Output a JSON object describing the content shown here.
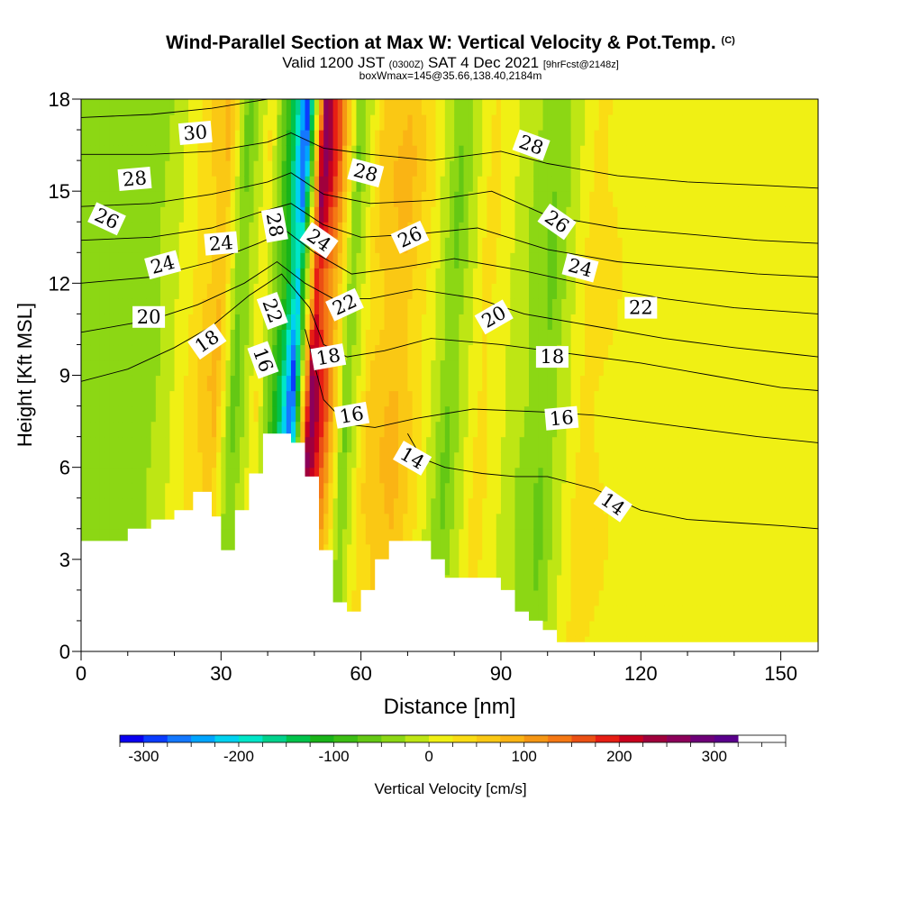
{
  "title": {
    "main": "Wind-Parallel Section at Max W: Vertical Velocity & Pot.Temp.",
    "copyright": "(C)",
    "valid_prefix": "Valid 1200 JST",
    "valid_utc": "(0300Z)",
    "valid_date": "SAT 4 Dec 2021",
    "forecast": "[9hrFcst@2148z]",
    "box": "boxWmax=145@35.66,138.40,2184m"
  },
  "chart_data": {
    "type": "heatmap",
    "xlabel": "Distance [nm]",
    "ylabel": "Height [Kft MSL]",
    "xlim": [
      0,
      158
    ],
    "ylim": [
      0,
      18
    ],
    "x_ticks": [
      0,
      30,
      60,
      90,
      120,
      150
    ],
    "y_ticks": [
      0,
      3,
      6,
      9,
      12,
      15,
      18
    ],
    "colorbar": {
      "label": "Vertical Velocity [cm/s]",
      "min": -325,
      "max": 375,
      "step": 25,
      "tick_values": [
        -300,
        -200,
        -100,
        0,
        100,
        200,
        300
      ],
      "tick_labels": [
        "-300",
        "-200",
        "-100",
        "0",
        "100",
        "200",
        "300"
      ],
      "colors": [
        "#0a00f0",
        "#0a3cff",
        "#1478ff",
        "#00a5ff",
        "#00d2f0",
        "#00e6c8",
        "#00d28c",
        "#00c34b",
        "#19b419",
        "#3cbe14",
        "#64c814",
        "#8cd714",
        "#bee614",
        "#f0f014",
        "#fadc14",
        "#fac814",
        "#fab414",
        "#f59614",
        "#f57814",
        "#eb5014",
        "#e61e14",
        "#c8001e",
        "#a0003c",
        "#8c005a",
        "#6e0078",
        "#5a008c"
      ]
    },
    "terrain_profile": {
      "x": [
        0,
        3,
        10,
        15,
        20,
        24,
        28,
        30,
        33,
        36,
        39,
        45,
        48,
        51,
        54,
        57,
        60,
        63,
        66,
        69,
        75,
        78,
        90,
        93,
        96,
        99,
        102,
        158
      ],
      "height": [
        3.6,
        3.6,
        4.0,
        4.3,
        4.6,
        5.2,
        4.4,
        3.3,
        4.6,
        5.8,
        7.1,
        6.8,
        5.7,
        3.3,
        1.6,
        1.3,
        2.0,
        3.0,
        3.6,
        3.6,
        3.0,
        2.4,
        2.0,
        1.3,
        1.0,
        0.7,
        0.3,
        0.3
      ]
    },
    "velocity_features": [
      {
        "x": 15,
        "value": -40
      },
      {
        "x": 22,
        "value": 20
      },
      {
        "x": 29,
        "value": 90
      },
      {
        "x": 33,
        "value": -70
      },
      {
        "x": 38,
        "value": 30
      },
      {
        "x": 43,
        "value": -150
      },
      {
        "x": 45.5,
        "value": -300
      },
      {
        "x": 49.5,
        "value": 280
      },
      {
        "x": 53,
        "value": 150
      },
      {
        "x": 57,
        "value": -60
      },
      {
        "x": 62,
        "value": 60
      },
      {
        "x": 68,
        "value": 90
      },
      {
        "x": 74,
        "value": 20
      },
      {
        "x": 79,
        "value": -60
      },
      {
        "x": 86,
        "value": 40
      },
      {
        "x": 95,
        "value": -30
      },
      {
        "x": 100,
        "value": -60
      },
      {
        "x": 108,
        "value": 40
      },
      {
        "x": 117,
        "value": 20
      },
      {
        "x": 131,
        "value": 10
      },
      {
        "x": 145,
        "value": 20
      }
    ],
    "potential_temperature_isotherms": [
      {
        "label": "14",
        "points": [
          [
            70,
            7.1
          ],
          [
            73,
            6.3
          ],
          [
            78,
            6.0
          ],
          [
            86,
            5.8
          ],
          [
            93,
            5.7
          ],
          [
            100,
            5.7
          ],
          [
            110,
            5.3
          ],
          [
            120,
            4.6
          ],
          [
            130,
            4.3
          ],
          [
            140,
            4.2
          ],
          [
            150,
            4.1
          ],
          [
            158,
            4.0
          ]
        ],
        "label_at": [
          [
            71,
            6.3,
            30
          ],
          [
            114,
            4.8,
            35
          ]
        ]
      },
      {
        "label": "16",
        "points": [
          [
            48,
            10.5
          ],
          [
            52,
            8.2
          ],
          [
            57,
            7.4
          ],
          [
            63,
            7.3
          ],
          [
            72,
            7.6
          ],
          [
            84,
            7.9
          ],
          [
            100,
            7.8
          ],
          [
            110,
            7.7
          ],
          [
            120,
            7.5
          ],
          [
            135,
            7.2
          ],
          [
            145,
            7.0
          ],
          [
            158,
            6.8
          ]
        ],
        "label_at": [
          [
            39,
            9.5,
            70
          ],
          [
            58,
            7.7,
            -10
          ],
          [
            103,
            7.6,
            -5
          ]
        ]
      },
      {
        "label": "18",
        "points": [
          [
            0,
            8.8
          ],
          [
            10,
            9.2
          ],
          [
            20,
            9.9
          ],
          [
            28,
            10.6
          ],
          [
            36,
            11.6
          ],
          [
            43,
            12.3
          ],
          [
            49,
            11.2
          ],
          [
            52,
            10.0
          ],
          [
            57,
            9.6
          ],
          [
            65,
            9.8
          ],
          [
            75,
            10.2
          ],
          [
            90,
            10.0
          ],
          [
            105,
            9.7
          ],
          [
            120,
            9.4
          ],
          [
            135,
            9.0
          ],
          [
            150,
            8.6
          ],
          [
            158,
            8.5
          ]
        ],
        "label_at": [
          [
            27,
            10.1,
            -35
          ],
          [
            53,
            9.6,
            -10
          ],
          [
            101,
            9.6,
            0
          ]
        ]
      },
      {
        "label": "20",
        "points": [
          [
            0,
            10.4
          ],
          [
            15,
            10.8
          ],
          [
            25,
            11.3
          ],
          [
            35,
            12.0
          ],
          [
            42,
            12.7
          ],
          [
            48,
            12.0
          ],
          [
            54,
            11.5
          ],
          [
            62,
            11.5
          ],
          [
            72,
            11.8
          ],
          [
            85,
            11.5
          ],
          [
            95,
            11.0
          ],
          [
            110,
            10.6
          ],
          [
            125,
            10.2
          ],
          [
            140,
            9.9
          ],
          [
            158,
            9.6
          ]
        ],
        "label_at": [
          [
            14.5,
            10.9,
            0
          ],
          [
            88.5,
            10.9,
            -30
          ]
        ]
      },
      {
        "label": "22",
        "points": [
          [
            0,
            12.0
          ],
          [
            15,
            12.2
          ],
          [
            28,
            12.7
          ],
          [
            38,
            13.3
          ],
          [
            44,
            13.7
          ],
          [
            50,
            13.0
          ],
          [
            58,
            12.3
          ],
          [
            68,
            12.5
          ],
          [
            80,
            12.8
          ],
          [
            95,
            12.4
          ],
          [
            110,
            11.9
          ],
          [
            125,
            11.5
          ],
          [
            140,
            11.2
          ],
          [
            158,
            11.0
          ]
        ],
        "label_at": [
          [
            41,
            11.1,
            70
          ],
          [
            56.5,
            11.3,
            -25
          ],
          [
            120,
            11.2,
            0
          ]
        ]
      },
      {
        "label": "24",
        "points": [
          [
            0,
            13.4
          ],
          [
            15,
            13.5
          ],
          [
            28,
            13.8
          ],
          [
            38,
            14.3
          ],
          [
            45,
            14.6
          ],
          [
            52,
            13.9
          ],
          [
            60,
            13.5
          ],
          [
            72,
            13.6
          ],
          [
            85,
            13.8
          ],
          [
            100,
            13.1
          ],
          [
            115,
            12.7
          ],
          [
            130,
            12.5
          ],
          [
            145,
            12.3
          ],
          [
            158,
            12.2
          ]
        ],
        "label_at": [
          [
            17.5,
            12.6,
            -15
          ],
          [
            30,
            13.3,
            -5
          ],
          [
            51,
            13.4,
            35
          ],
          [
            107,
            12.5,
            15
          ]
        ]
      },
      {
        "label": "26",
        "points": [
          [
            0,
            14.5
          ],
          [
            15,
            14.6
          ],
          [
            28,
            14.9
          ],
          [
            40,
            15.3
          ],
          [
            45,
            15.6
          ],
          [
            52,
            14.9
          ],
          [
            62,
            14.6
          ],
          [
            75,
            14.7
          ],
          [
            88,
            15.0
          ],
          [
            100,
            14.2
          ],
          [
            115,
            13.8
          ],
          [
            130,
            13.6
          ],
          [
            145,
            13.4
          ],
          [
            158,
            13.3
          ]
        ],
        "label_at": [
          [
            5.5,
            14.1,
            25
          ],
          [
            70.5,
            13.5,
            -25
          ],
          [
            102,
            14.0,
            35
          ]
        ]
      },
      {
        "label": "28",
        "points": [
          [
            0,
            16.2
          ],
          [
            15,
            16.2
          ],
          [
            28,
            16.3
          ],
          [
            40,
            16.6
          ],
          [
            45,
            16.9
          ],
          [
            52,
            16.4
          ],
          [
            62,
            16.2
          ],
          [
            75,
            16.0
          ],
          [
            90,
            16.3
          ],
          [
            100,
            15.9
          ],
          [
            115,
            15.5
          ],
          [
            130,
            15.3
          ],
          [
            145,
            15.2
          ],
          [
            158,
            15.1
          ]
        ],
        "label_at": [
          [
            11.5,
            15.4,
            -5
          ],
          [
            41.5,
            13.9,
            80
          ],
          [
            61,
            15.6,
            15
          ],
          [
            96.5,
            16.5,
            20
          ]
        ]
      },
      {
        "label": "30",
        "points": [
          [
            0,
            17.4
          ],
          [
            15,
            17.5
          ],
          [
            28,
            17.7
          ],
          [
            40,
            18.0
          ]
        ],
        "label_at": [
          [
            24.5,
            16.9,
            -5
          ]
        ]
      }
    ]
  }
}
